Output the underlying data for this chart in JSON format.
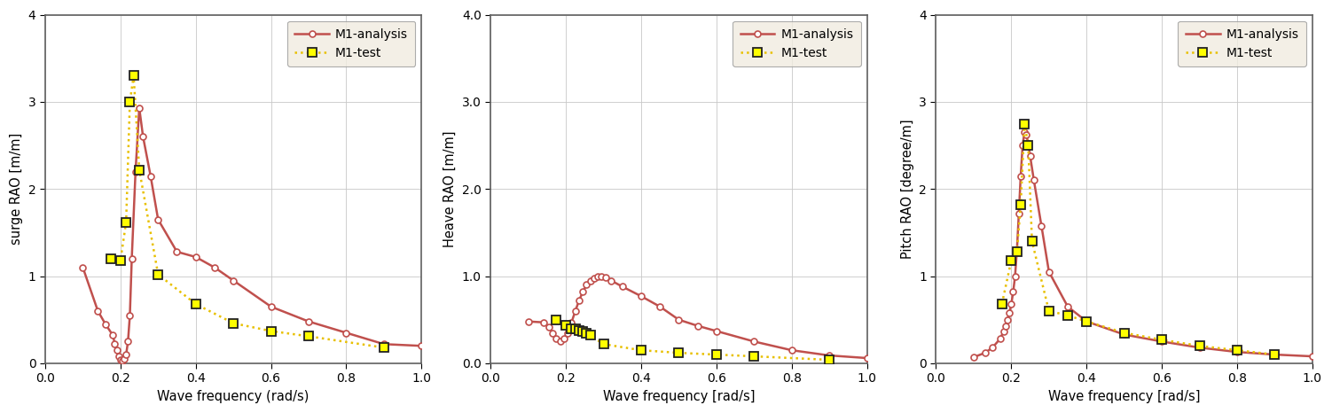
{
  "analysis_color": "#c0504d",
  "test_color": "#e8c000",
  "legend_bg": "#f0ece0",
  "grid_color": "#c8c8c8",
  "fig_bg": "#ffffff",
  "surge": {
    "ylabel": "surge RAO [m/m]",
    "xlabel": "Wave frequency (rad/s)",
    "ylim": [
      0,
      4
    ],
    "yticks": [
      0,
      1,
      2,
      3,
      4
    ],
    "ytick_labels": [
      "0",
      "1",
      "2",
      "3",
      "4"
    ],
    "xlim": [
      0.0,
      1.0
    ],
    "xticks": [
      0.0,
      0.2,
      0.4,
      0.6,
      0.8,
      1.0
    ],
    "analysis_x": [
      0.1,
      0.14,
      0.16,
      0.18,
      0.185,
      0.19,
      0.195,
      0.2,
      0.205,
      0.21,
      0.215,
      0.22,
      0.225,
      0.23,
      0.24,
      0.25,
      0.26,
      0.28,
      0.3,
      0.35,
      0.4,
      0.45,
      0.5,
      0.6,
      0.7,
      0.8,
      0.9,
      1.0
    ],
    "analysis_y": [
      1.1,
      0.6,
      0.45,
      0.32,
      0.22,
      0.15,
      0.08,
      0.04,
      0.03,
      0.05,
      0.1,
      0.25,
      0.55,
      1.2,
      2.2,
      2.93,
      2.6,
      2.15,
      1.65,
      1.28,
      1.22,
      1.1,
      0.95,
      0.65,
      0.48,
      0.35,
      0.22,
      0.2
    ],
    "test_x": [
      0.175,
      0.2,
      0.215,
      0.225,
      0.235,
      0.25,
      0.3,
      0.4,
      0.5,
      0.6,
      0.7,
      0.9
    ],
    "test_y": [
      1.2,
      1.18,
      1.62,
      3.0,
      3.3,
      2.22,
      1.02,
      0.68,
      0.46,
      0.37,
      0.31,
      0.18
    ]
  },
  "heave": {
    "ylabel": "Heave RAO [m/m]",
    "xlabel": "Wave frequency [rad/s]",
    "ylim": [
      0.0,
      4.0
    ],
    "yticks": [
      0.0,
      1.0,
      2.0,
      3.0,
      4.0
    ],
    "ytick_labels": [
      "0.0",
      "1.0",
      "2.0",
      "3.0",
      "4.0"
    ],
    "xlim": [
      0.0,
      1.0
    ],
    "xticks": [
      0.0,
      0.2,
      0.4,
      0.6,
      0.8,
      1.0
    ],
    "analysis_x": [
      0.1,
      0.14,
      0.155,
      0.165,
      0.175,
      0.185,
      0.195,
      0.205,
      0.215,
      0.225,
      0.235,
      0.245,
      0.255,
      0.265,
      0.275,
      0.285,
      0.295,
      0.305,
      0.32,
      0.35,
      0.4,
      0.45,
      0.5,
      0.55,
      0.6,
      0.7,
      0.8,
      0.9,
      1.0
    ],
    "analysis_y": [
      0.48,
      0.47,
      0.42,
      0.35,
      0.28,
      0.25,
      0.28,
      0.35,
      0.47,
      0.6,
      0.72,
      0.82,
      0.9,
      0.95,
      0.98,
      1.0,
      1.0,
      0.99,
      0.95,
      0.88,
      0.77,
      0.65,
      0.5,
      0.43,
      0.37,
      0.25,
      0.15,
      0.09,
      0.06
    ],
    "test_x": [
      0.175,
      0.2,
      0.215,
      0.225,
      0.235,
      0.245,
      0.255,
      0.265,
      0.3,
      0.4,
      0.5,
      0.6,
      0.7,
      0.9
    ],
    "test_y": [
      0.5,
      0.44,
      0.4,
      0.4,
      0.38,
      0.37,
      0.35,
      0.32,
      0.22,
      0.15,
      0.12,
      0.1,
      0.08,
      0.04
    ]
  },
  "pitch": {
    "ylabel": "Pitch RAO [degree/m]",
    "xlabel": "Wave frequency [rad/s]",
    "ylim": [
      0,
      4
    ],
    "yticks": [
      0,
      1,
      2,
      3,
      4
    ],
    "ytick_labels": [
      "0",
      "1",
      "2",
      "3",
      "4"
    ],
    "xlim": [
      0.0,
      1.0
    ],
    "xticks": [
      0.0,
      0.2,
      0.4,
      0.6,
      0.8,
      1.0
    ],
    "analysis_x": [
      0.1,
      0.13,
      0.15,
      0.17,
      0.18,
      0.185,
      0.19,
      0.195,
      0.2,
      0.205,
      0.21,
      0.215,
      0.22,
      0.225,
      0.23,
      0.235,
      0.24,
      0.245,
      0.25,
      0.26,
      0.28,
      0.3,
      0.35,
      0.4,
      0.5,
      0.6,
      0.7,
      0.8,
      0.9,
      1.0
    ],
    "analysis_y": [
      0.07,
      0.12,
      0.18,
      0.28,
      0.37,
      0.43,
      0.5,
      0.58,
      0.68,
      0.82,
      1.0,
      1.3,
      1.72,
      2.15,
      2.5,
      2.65,
      2.62,
      2.52,
      2.38,
      2.1,
      1.58,
      1.05,
      0.65,
      0.48,
      0.33,
      0.25,
      0.18,
      0.13,
      0.1,
      0.08
    ],
    "test_x": [
      0.175,
      0.2,
      0.215,
      0.225,
      0.235,
      0.245,
      0.255,
      0.3,
      0.35,
      0.4,
      0.5,
      0.6,
      0.7,
      0.8,
      0.9
    ],
    "test_y": [
      0.68,
      1.18,
      1.28,
      1.82,
      2.75,
      2.5,
      1.4,
      0.6,
      0.55,
      0.48,
      0.35,
      0.27,
      0.2,
      0.15,
      0.1
    ]
  }
}
